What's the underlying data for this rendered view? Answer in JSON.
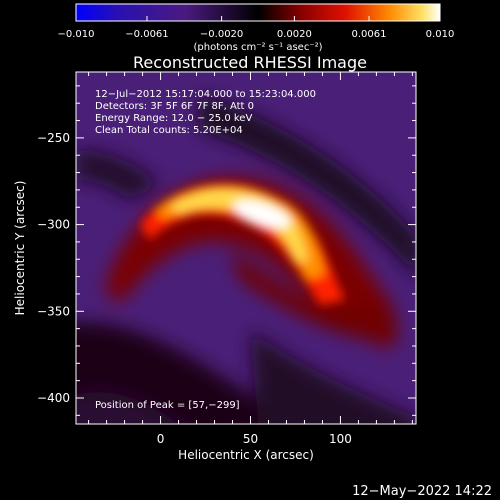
{
  "chart_data": {
    "type": "heatmap",
    "title": "Reconstructed RHESSI Image",
    "xlabel": "Heliocentric X (arcsec)",
    "ylabel": "Heliocentric Y (arcsec)",
    "xlim": [
      -47,
      142
    ],
    "ylim": [
      -415,
      -212
    ],
    "x_ticks": [
      0,
      50,
      100
    ],
    "x_tick_labels": [
      "0",
      "50",
      "100"
    ],
    "y_ticks": [
      -250,
      -300,
      -350,
      -400
    ],
    "y_tick_labels": [
      "−250",
      "−300",
      "−350",
      "−400"
    ],
    "colorbar": {
      "range": [
        -0.01,
        0.01
      ],
      "ticks": [
        -0.01,
        -0.0061,
        -0.002,
        0.002,
        0.0061,
        0.01
      ],
      "tick_labels": [
        "−0.010",
        "−0.0061",
        "−0.0020",
        "0.0020",
        "0.0061",
        "0.010"
      ],
      "units_label": "(photons cm⁻² s⁻¹ asec⁻²)",
      "colors": [
        "#0000ff",
        "#3a0a78",
        "#4f2a8a",
        "#000000",
        "#7a0000",
        "#d80000",
        "#ff6a00",
        "#ffd030",
        "#ffffff"
      ]
    },
    "annotations": [
      "12−Jul−2012 15:17:04.000 to 15:23:04.000",
      "Detectors: 3F 5F 6F 7F 8F, Att 0",
      "Energy Range: 12.0 − 25.0 keV",
      "Clean     Total counts: 5.20E+04"
    ],
    "peak_label": "Position of Peak = [57,−299]",
    "peak": [
      57,
      -299
    ],
    "grid": false
  },
  "footer_timestamp": "12−May−2022 14:22"
}
